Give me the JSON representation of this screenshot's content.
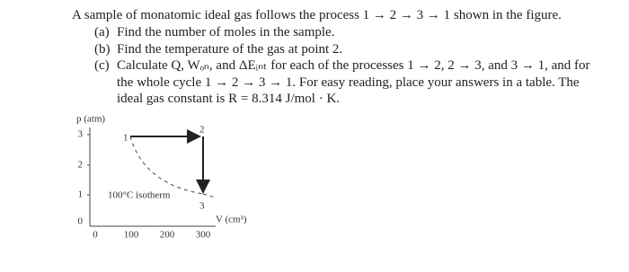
{
  "problem": {
    "intro": "A sample of monatomic ideal gas follows the process 1 → 2 → 3 → 1 shown in the figure.",
    "parts": [
      {
        "label": "(a)",
        "text": "Find the number of moles in the sample."
      },
      {
        "label": "(b)",
        "text": "Find the temperature of the gas at point 2."
      },
      {
        "label": "(c)",
        "text": "Calculate Q, Wₒₙ, and ΔEᵢₙₜ for each of the processes 1 → 2, 2 → 3, and 3 → 1, and for the whole cycle 1 → 2 → 3 → 1. For easy reading, place your answers in a table. The ideal gas constant is R = 8.314 J/mol · K."
      }
    ]
  },
  "figure": {
    "y_label": "p (atm)",
    "x_label": "V (cm³)",
    "yticks": [
      "3",
      "2",
      "1",
      "0"
    ],
    "xticks": [
      "0",
      "100",
      "200",
      "300"
    ],
    "points": [
      "1",
      "2",
      "3"
    ],
    "isotherm_label": "100°C isotherm"
  }
}
